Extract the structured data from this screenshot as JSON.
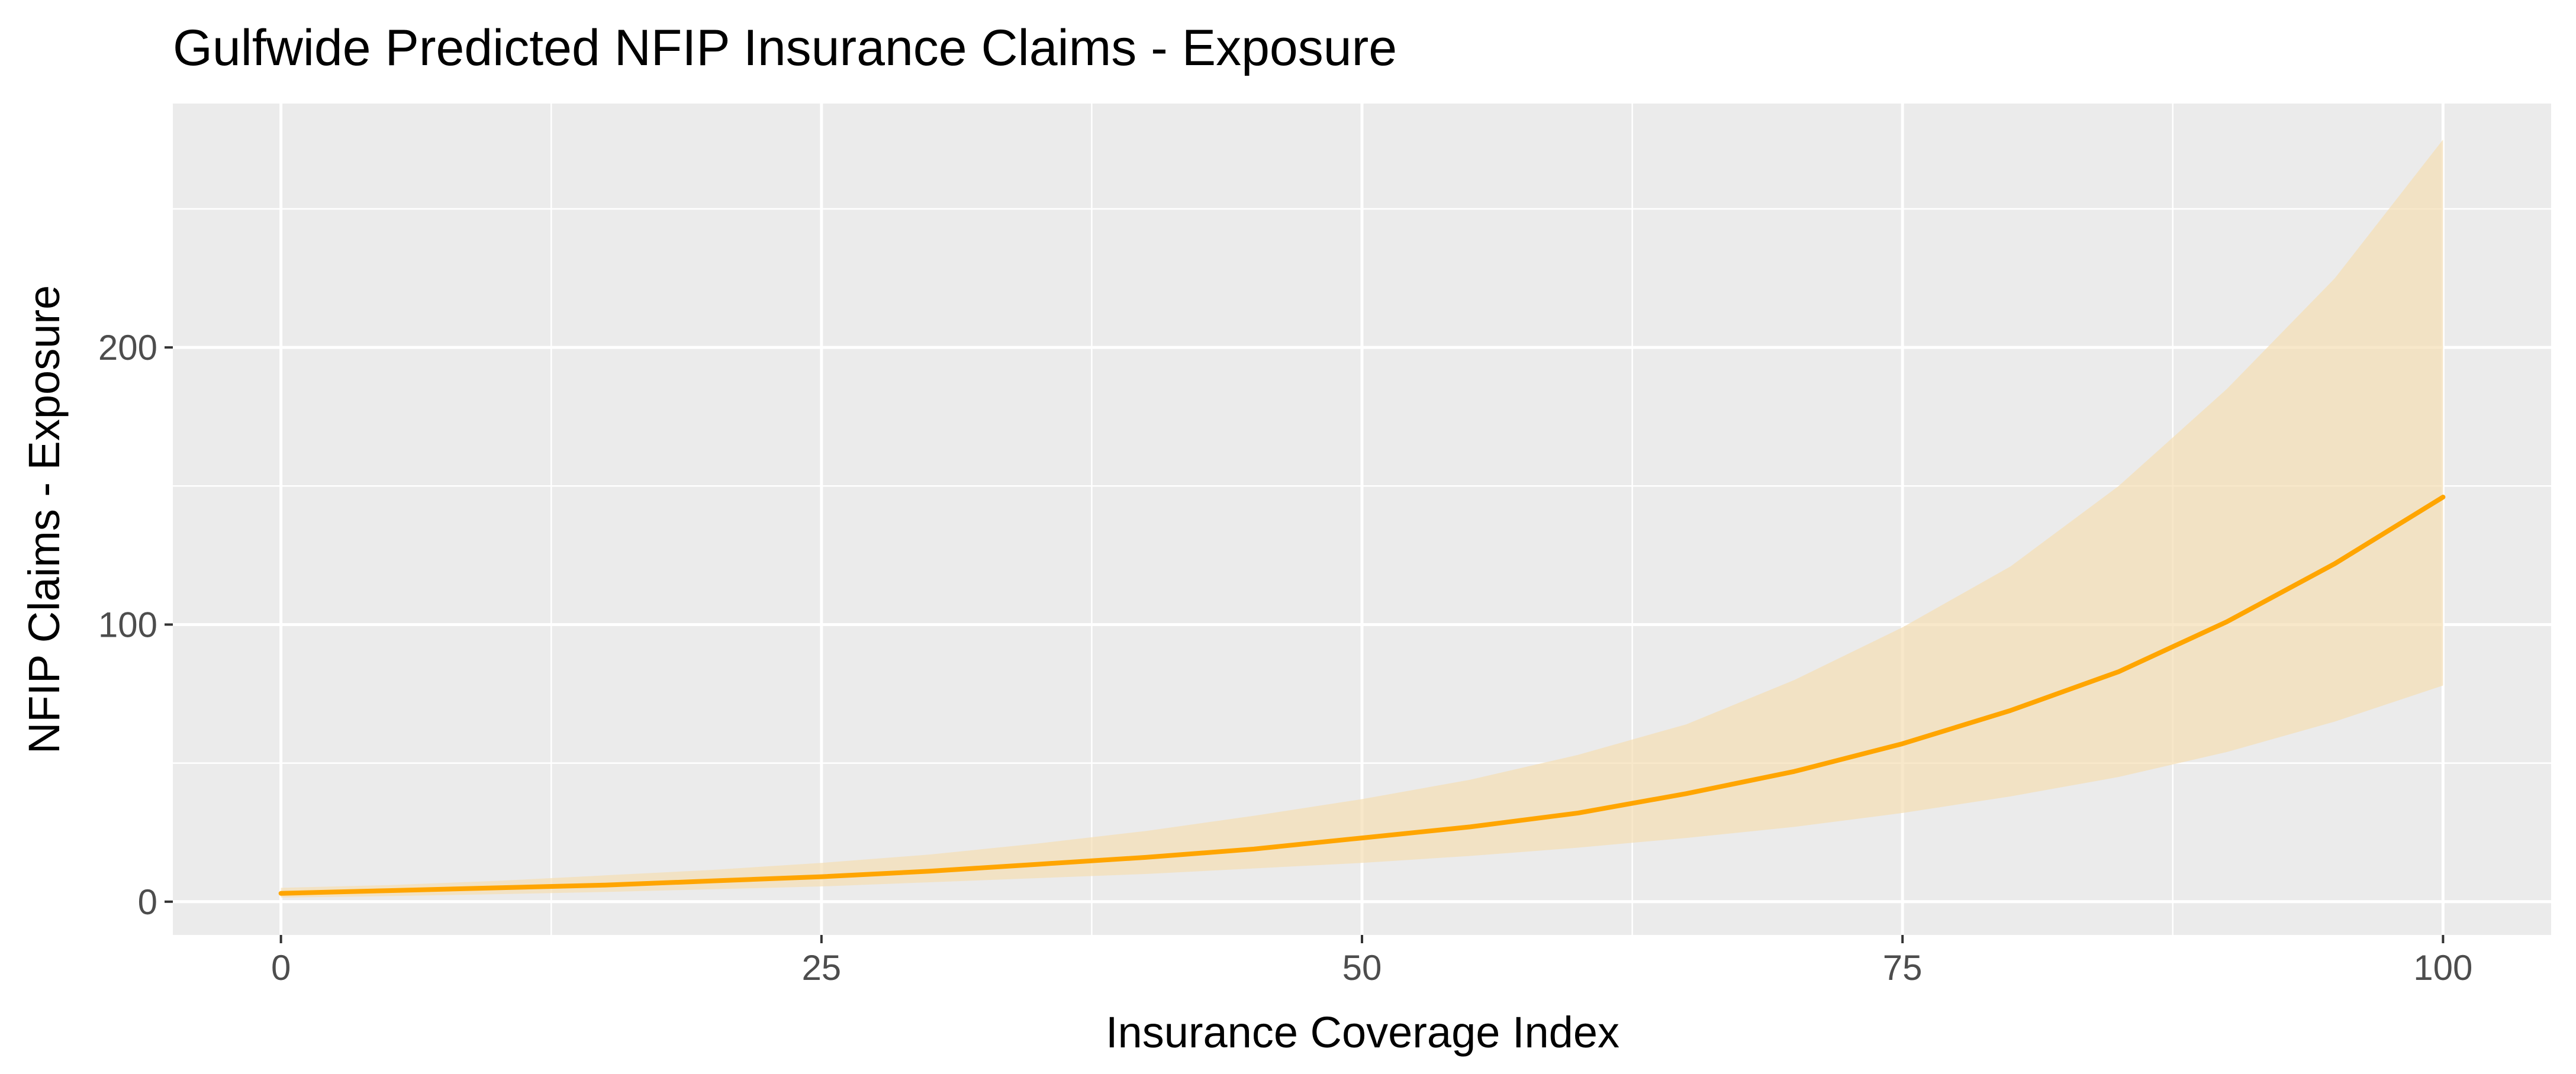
{
  "chart_data": {
    "type": "line",
    "title": "Gulfwide Predicted NFIP Insurance Claims - Exposure",
    "xlabel": "Insurance Coverage Index",
    "ylabel": "NFIP Claims - Exposure",
    "xlim": [
      -5,
      105
    ],
    "ylim": [
      -12,
      288
    ],
    "x_ticks": [
      0,
      25,
      50,
      75,
      100
    ],
    "y_ticks": [
      0,
      100,
      200
    ],
    "x_tick_labels": [
      "0",
      "25",
      "50",
      "75",
      "100"
    ],
    "y_tick_labels": [
      "0",
      "100",
      "200"
    ],
    "grid": true,
    "legend": "none",
    "colors": {
      "panel": "#ebebeb",
      "line": "#ffa500",
      "ribbon": "#f5deb3"
    },
    "x": [
      0,
      5,
      10,
      15,
      20,
      25,
      30,
      35,
      40,
      45,
      50,
      55,
      60,
      65,
      70,
      75,
      80,
      85,
      90,
      95,
      100
    ],
    "y": [
      3,
      4,
      5,
      6,
      7.5,
      9,
      11,
      13.5,
      16,
      19,
      23,
      27,
      32,
      39,
      47,
      57,
      69,
      83,
      101,
      122,
      146
    ],
    "lower": [
      1.5,
      2,
      2.7,
      3.5,
      4.5,
      5.5,
      7,
      8.5,
      10,
      12,
      14,
      16.5,
      19.5,
      23,
      27,
      32,
      38,
      45,
      54,
      65,
      78
    ],
    "upper": [
      5,
      6,
      7.5,
      9.5,
      11.5,
      14,
      17,
      21,
      25.5,
      31,
      37,
      44,
      53,
      64,
      80,
      99,
      121,
      150,
      185,
      225,
      275
    ]
  }
}
